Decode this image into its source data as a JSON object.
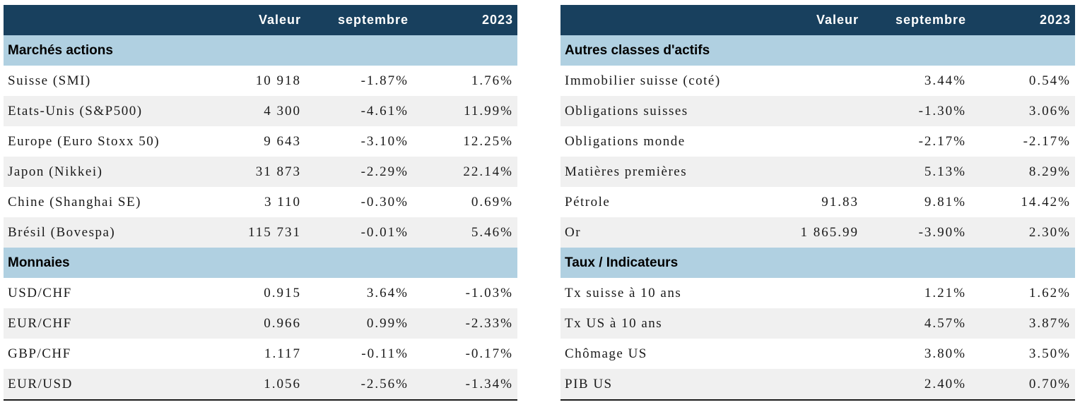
{
  "left_table": {
    "headers": [
      "",
      "Valeur",
      "septembre",
      "2023"
    ],
    "sections": [
      {
        "title": "Marchés actions",
        "rows": [
          {
            "label": "Suisse (SMI)",
            "valeur": "10 918",
            "septembre": "-1.87%",
            "y2023": "1.76%"
          },
          {
            "label": "Etats-Unis (S&P500)",
            "valeur": "4 300",
            "septembre": "-4.61%",
            "y2023": "11.99%"
          },
          {
            "label": "Europe (Euro Stoxx 50)",
            "valeur": "9 643",
            "septembre": "-3.10%",
            "y2023": "12.25%"
          },
          {
            "label": "Japon (Nikkei)",
            "valeur": "31 873",
            "septembre": "-2.29%",
            "y2023": "22.14%"
          },
          {
            "label": "Chine (Shanghai SE)",
            "valeur": "3 110",
            "septembre": "-0.30%",
            "y2023": "0.69%"
          },
          {
            "label": "Brésil (Bovespa)",
            "valeur": "115 731",
            "septembre": "-0.01%",
            "y2023": "5.46%"
          }
        ]
      },
      {
        "title": "Monnaies",
        "rows": [
          {
            "label": "USD/CHF",
            "valeur": "0.915",
            "septembre": "3.64%",
            "y2023": "-1.03%"
          },
          {
            "label": "EUR/CHF",
            "valeur": "0.966",
            "septembre": "0.99%",
            "y2023": "-2.33%"
          },
          {
            "label": "GBP/CHF",
            "valeur": "1.117",
            "septembre": "-0.11%",
            "y2023": "-0.17%"
          },
          {
            "label": "EUR/USD",
            "valeur": "1.056",
            "septembre": "-2.56%",
            "y2023": "-1.34%"
          }
        ]
      }
    ]
  },
  "right_table": {
    "headers": [
      "",
      "Valeur",
      "septembre",
      "2023"
    ],
    "sections": [
      {
        "title": "Autres classes d'actifs",
        "rows": [
          {
            "label": "Immobilier suisse (coté)",
            "valeur": "",
            "septembre": "3.44%",
            "y2023": "0.54%"
          },
          {
            "label": "Obligations suisses",
            "valeur": "",
            "septembre": "-1.30%",
            "y2023": "3.06%"
          },
          {
            "label": "Obligations monde",
            "valeur": "",
            "septembre": "-2.17%",
            "y2023": "-2.17%"
          },
          {
            "label": "Matières premières",
            "valeur": "",
            "septembre": "5.13%",
            "y2023": "8.29%"
          },
          {
            "label": "Pétrole",
            "valeur": "91.83",
            "septembre": "9.81%",
            "y2023": "14.42%"
          },
          {
            "label": "Or",
            "valeur": "1 865.99",
            "septembre": "-3.90%",
            "y2023": "2.30%"
          }
        ]
      },
      {
        "title": "Taux / Indicateurs",
        "rows": [
          {
            "label": "Tx suisse à 10 ans",
            "valeur": "",
            "septembre": "1.21%",
            "y2023": "1.62%"
          },
          {
            "label": "Tx US à 10 ans",
            "valeur": "",
            "septembre": "4.57%",
            "y2023": "3.87%"
          },
          {
            "label": "Chômage US",
            "valeur": "",
            "septembre": "3.80%",
            "y2023": "3.50%"
          },
          {
            "label": "PIB US",
            "valeur": "",
            "septembre": "2.40%",
            "y2023": "0.70%"
          }
        ]
      }
    ]
  },
  "colors": {
    "header_bg": "#18405e",
    "section_bg": "#b0d0e1",
    "alt_row_bg": "#f0f0f0"
  }
}
